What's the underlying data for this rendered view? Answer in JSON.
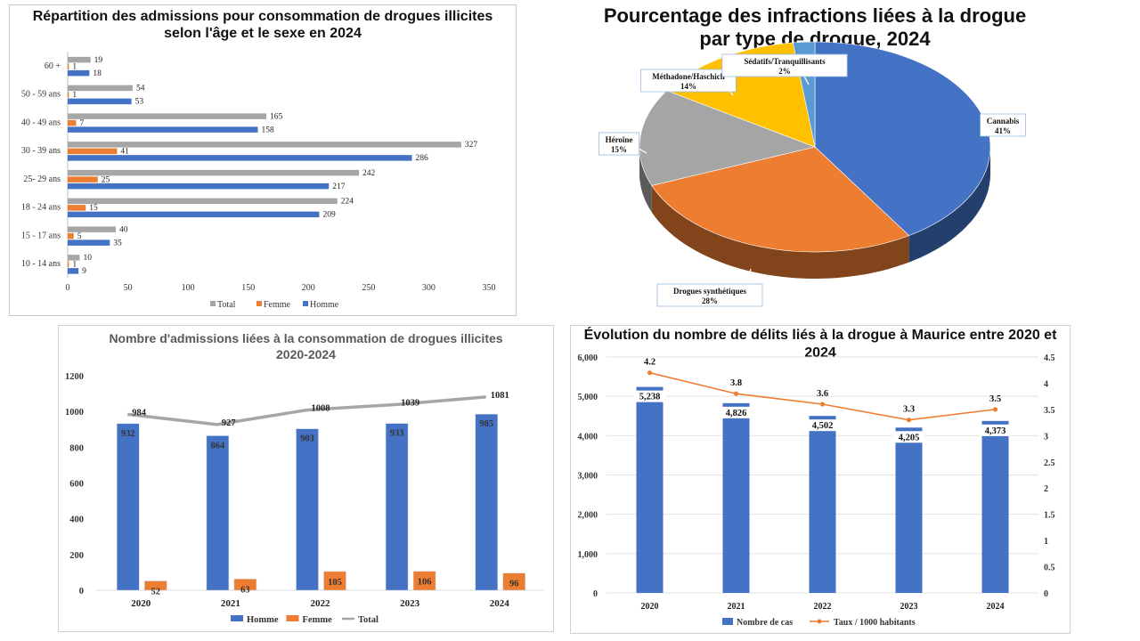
{
  "chart_data": [
    {
      "type": "bar",
      "orientation": "horizontal",
      "title": "Répartition des admissions pour consommation de drogues illicites selon l'âge et le sexe en 2024",
      "title_line1": "Répartition des admissions pour consommation de drogues illicites",
      "title_line2": "selon l'âge et le sexe en 2024",
      "categories": [
        "10 - 14 ans",
        "15 - 17 ans",
        "18 - 24 ans",
        "25- 29 ans",
        "30 - 39 ans",
        "40 - 49 ans",
        "50 - 59 ans",
        "60 +"
      ],
      "series": [
        {
          "name": "Total",
          "color": "#a6a6a6",
          "values": [
            10,
            40,
            224,
            242,
            327,
            165,
            54,
            19
          ]
        },
        {
          "name": "Femme",
          "color": "#ed7d31",
          "values": [
            1,
            5,
            15,
            25,
            41,
            7,
            1,
            1
          ]
        },
        {
          "name": "Homme",
          "color": "#4472c4",
          "values": [
            9,
            35,
            209,
            217,
            286,
            158,
            53,
            18
          ]
        }
      ],
      "xlim": [
        0,
        350
      ],
      "xticks": [
        0,
        50,
        100,
        150,
        200,
        250,
        300,
        350
      ],
      "legend": "bottom"
    },
    {
      "type": "pie",
      "title": "Pourcentage des infractions liées à la drogue par type de drogue, 2024",
      "title_line1": "Pourcentage des infractions liées à la drogue",
      "title_line2": "par type de drogue, 2024",
      "slices": [
        {
          "label": "Cannabis",
          "value": 41,
          "pct": "41%",
          "color": "#4472c4"
        },
        {
          "label": "Drogues synthétiques",
          "value": 28,
          "pct": "28%",
          "color": "#ed7d31"
        },
        {
          "label": "Héroïne",
          "value": 15,
          "pct": "15%",
          "color": "#a5a5a5"
        },
        {
          "label": "Méthadone/Haschich",
          "value": 14,
          "pct": "14%",
          "color": "#ffc000"
        },
        {
          "label": "Sédatifs/Tranquillisants",
          "value": 2,
          "pct": "2%",
          "color": "#5b9bd5"
        }
      ]
    },
    {
      "type": "bar",
      "title": "Nombre d'admissions liées à la consommation de drogues illicites 2020-2024",
      "title_line1": "Nombre d'admissions liées à la consommation de drogues illicites",
      "title_line2": "2020-2024",
      "categories": [
        "2020",
        "2021",
        "2022",
        "2023",
        "2024"
      ],
      "series": [
        {
          "name": "Homme",
          "type": "bar",
          "color": "#4472c4",
          "values": [
            932,
            864,
            903,
            933,
            985
          ]
        },
        {
          "name": "Femme",
          "type": "bar",
          "color": "#ed7d31",
          "values": [
            52,
            63,
            105,
            106,
            96
          ]
        },
        {
          "name": "Total",
          "type": "line",
          "color": "#a6a6a6",
          "values": [
            984,
            927,
            1008,
            1039,
            1081
          ]
        }
      ],
      "ylim": [
        0,
        1200
      ],
      "yticks": [
        0,
        200,
        400,
        600,
        800,
        1000,
        1200
      ],
      "legend": "bottom"
    },
    {
      "type": "bar",
      "title": "Évolution du nombre de délits liés à la drogue à Maurice entre 2020 et 2024",
      "categories": [
        "2020",
        "2021",
        "2022",
        "2023",
        "2024"
      ],
      "series": [
        {
          "name": "Nombre de cas",
          "type": "bar",
          "axis": "left",
          "color": "#4472c4",
          "values": [
            5238,
            4826,
            4502,
            4205,
            4373
          ],
          "labels": [
            "5,238",
            "4,826",
            "4,502",
            "4,205",
            "4,373"
          ]
        },
        {
          "name": "Taux / 1000 habitants",
          "type": "line",
          "axis": "right",
          "color": "#ed7d31",
          "values": [
            4.2,
            3.8,
            3.6,
            3.3,
            3.5
          ],
          "labels": [
            "4.2",
            "3.8",
            "3.6",
            "3.3",
            "3.5"
          ]
        }
      ],
      "ylim": [
        0,
        6000
      ],
      "yticks": [
        "0",
        "1,000",
        "2,000",
        "3,000",
        "4,000",
        "5,000",
        "6,000"
      ],
      "y2lim": [
        0,
        4.5
      ],
      "y2ticks": [
        "0",
        "0.5",
        "1",
        "1.5",
        "2",
        "2.5",
        "3",
        "3.5",
        "4",
        "4.5"
      ],
      "legend": "bottom"
    }
  ]
}
